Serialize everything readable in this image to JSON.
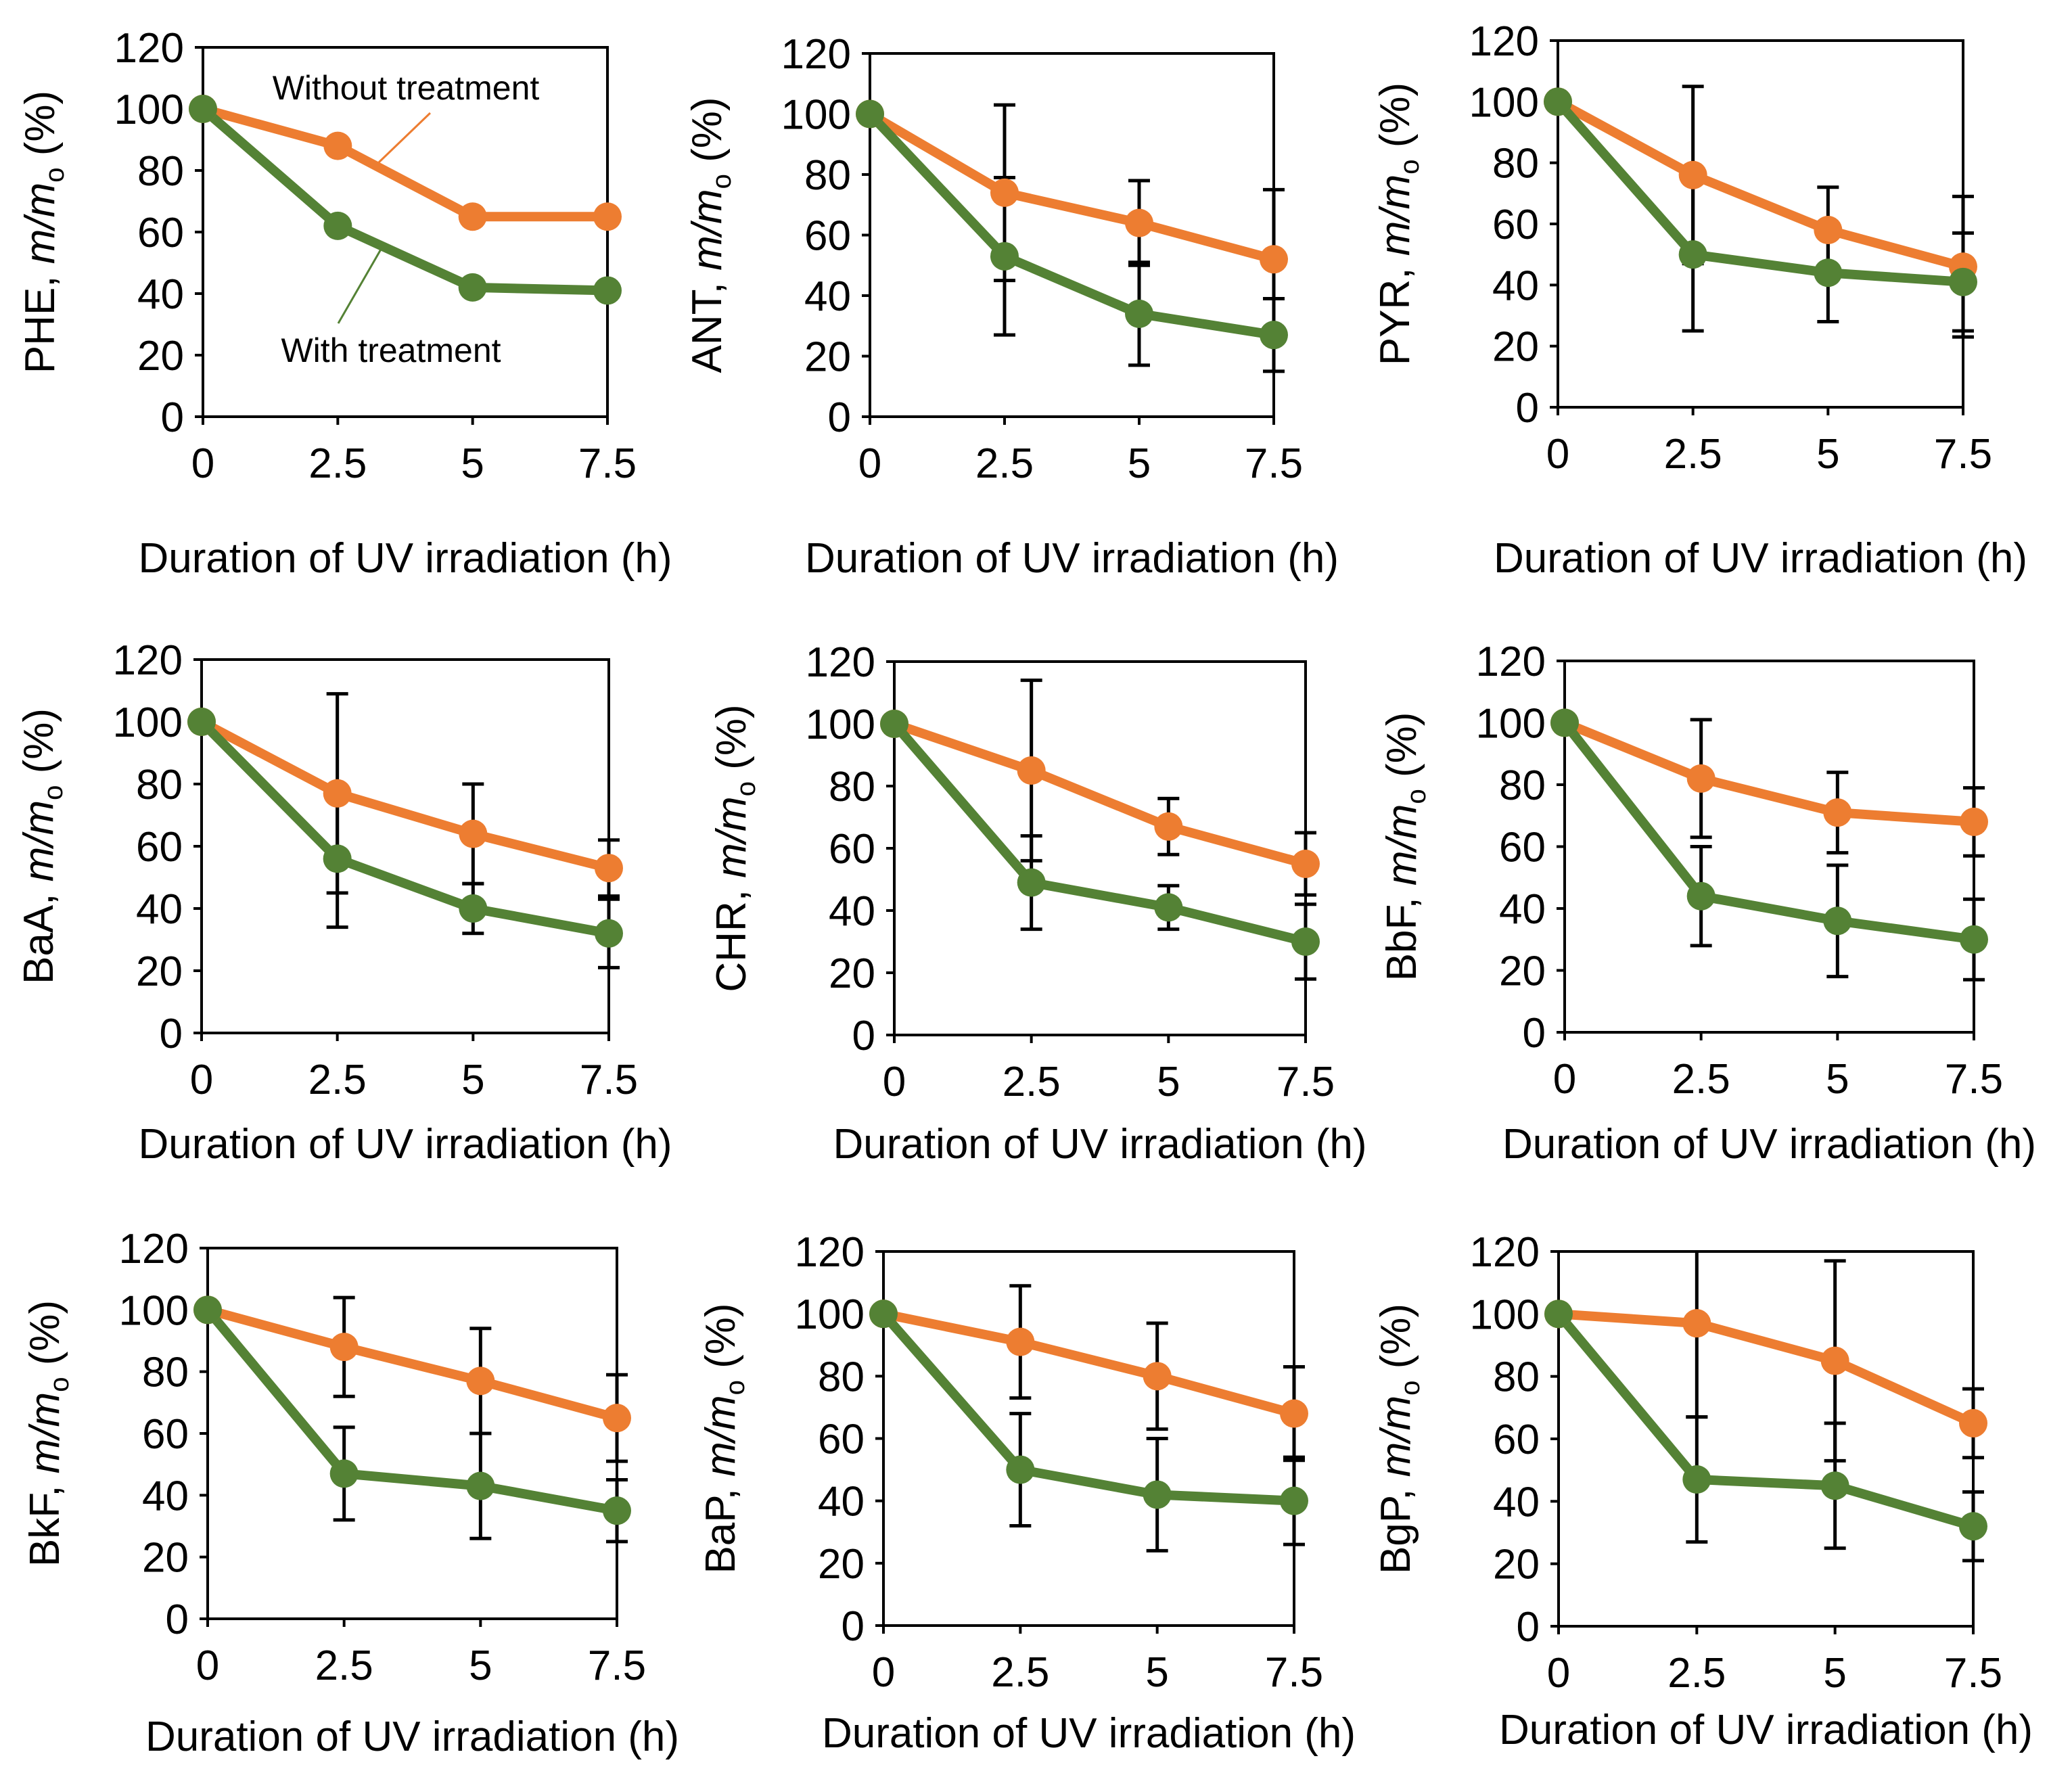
{
  "colors": {
    "without": "#ED7D31",
    "with": "#548235"
  },
  "chart_data": [
    {
      "type": "line",
      "panel": "PHE",
      "ylabel_prefix": "PHE, ",
      "ylabel_italic": "m/m",
      "ylabel_sub": "o",
      "ylabel_suffix": " (%)",
      "xlabel": "Duration of UV irradiation (h)",
      "x": [
        0,
        2.5,
        5,
        7.5
      ],
      "x_ticks": [
        "0",
        "2.5",
        "5",
        "7.5"
      ],
      "xlim": [
        0,
        7.5
      ],
      "y_ticks": [
        "0",
        "20",
        "40",
        "60",
        "80",
        "100",
        "120"
      ],
      "ylim": [
        0,
        120
      ],
      "series": [
        {
          "name": "Without treatment",
          "values": [
            100,
            88,
            65,
            65
          ],
          "err": [
            0,
            0,
            0,
            0
          ]
        },
        {
          "name": "With treatment",
          "values": [
            100,
            62,
            42,
            41
          ],
          "err": [
            0,
            0,
            0,
            0
          ]
        }
      ],
      "annotations": [
        "Without treatment",
        "With treatment"
      ]
    },
    {
      "type": "line",
      "panel": "ANT",
      "ylabel_prefix": "ANT, ",
      "ylabel_italic": "m/m",
      "ylabel_sub": "o",
      "ylabel_suffix": " (%)",
      "xlabel": "Duration of UV irradiation (h)",
      "x": [
        0,
        2.5,
        5,
        7.5
      ],
      "x_ticks": [
        "0",
        "2.5",
        "5",
        "7.5"
      ],
      "xlim": [
        0,
        7.5
      ],
      "y_ticks": [
        "0",
        "20",
        "40",
        "60",
        "80",
        "100",
        "120"
      ],
      "ylim": [
        0,
        120
      ],
      "series": [
        {
          "name": "Without treatment",
          "values": [
            100,
            74,
            64,
            52
          ],
          "err": [
            0,
            29,
            14,
            23
          ]
        },
        {
          "name": "With treatment",
          "values": [
            100,
            53,
            34,
            27
          ],
          "err": [
            0,
            26,
            17,
            12
          ]
        }
      ]
    },
    {
      "type": "line",
      "panel": "PYR",
      "ylabel_prefix": "PYR, ",
      "ylabel_italic": "m/m",
      "ylabel_sub": "o",
      "ylabel_suffix": " (%)",
      "xlabel": "Duration of UV irradiation (h)",
      "x": [
        0,
        2.5,
        5,
        7.5
      ],
      "x_ticks": [
        "0",
        "2.5",
        "5",
        "7.5"
      ],
      "xlim": [
        0,
        7.5
      ],
      "y_ticks": [
        "0",
        "20",
        "40",
        "60",
        "80",
        "100",
        "120"
      ],
      "ylim": [
        0,
        120
      ],
      "series": [
        {
          "name": "Without treatment",
          "values": [
            100,
            76,
            58,
            46
          ],
          "err": [
            0,
            29,
            14,
            23
          ]
        },
        {
          "name": "With treatment",
          "values": [
            100,
            50,
            44,
            41
          ],
          "err": [
            0,
            25,
            16,
            16
          ]
        }
      ]
    },
    {
      "type": "line",
      "panel": "BaA",
      "ylabel_prefix": "BaA, ",
      "ylabel_italic": "m/m",
      "ylabel_sub": "o",
      "ylabel_suffix": " (%)",
      "xlabel": "Duration of UV irradiation (h)",
      "x": [
        0,
        2.5,
        5,
        7.5
      ],
      "x_ticks": [
        "0",
        "2.5",
        "5",
        "7.5"
      ],
      "xlim": [
        0,
        7.5
      ],
      "y_ticks": [
        "0",
        "20",
        "40",
        "60",
        "80",
        "100",
        "120"
      ],
      "ylim": [
        0,
        120
      ],
      "series": [
        {
          "name": "Without treatment",
          "values": [
            100,
            77,
            64,
            53
          ],
          "err": [
            0,
            32,
            16,
            9
          ]
        },
        {
          "name": "With treatment",
          "values": [
            100,
            56,
            40,
            32
          ],
          "err": [
            0,
            22,
            8,
            11
          ]
        }
      ]
    },
    {
      "type": "line",
      "panel": "CHR",
      "ylabel_prefix": "CHR, ",
      "ylabel_italic": "m/m",
      "ylabel_sub": "o",
      "ylabel_suffix": " (%)",
      "xlabel": "Duration of UV irradiation (h)",
      "x": [
        0,
        2.5,
        5,
        7.5
      ],
      "x_ticks": [
        "0",
        "2.5",
        "5",
        "7.5"
      ],
      "xlim": [
        0,
        7.5
      ],
      "y_ticks": [
        "0",
        "20",
        "40",
        "60",
        "80",
        "100",
        "120"
      ],
      "ylim": [
        0,
        120
      ],
      "series": [
        {
          "name": "Without treatment",
          "values": [
            100,
            85,
            67,
            55
          ],
          "err": [
            0,
            29,
            9,
            10
          ]
        },
        {
          "name": "With treatment",
          "values": [
            100,
            49,
            41,
            30
          ],
          "err": [
            0,
            15,
            7,
            12
          ]
        }
      ]
    },
    {
      "type": "line",
      "panel": "BbF",
      "ylabel_prefix": "BbF, ",
      "ylabel_italic": "m/m",
      "ylabel_sub": "o",
      "ylabel_suffix": " (%)",
      "xlabel": "Duration of UV irradiation (h)",
      "x": [
        0,
        2.5,
        5,
        7.5
      ],
      "x_ticks": [
        "0",
        "2.5",
        "5",
        "7.5"
      ],
      "xlim": [
        0,
        7.5
      ],
      "y_ticks": [
        "0",
        "20",
        "40",
        "60",
        "80",
        "100",
        "120"
      ],
      "ylim": [
        0,
        120
      ],
      "series": [
        {
          "name": "Without treatment",
          "values": [
            100,
            82,
            71,
            68
          ],
          "err": [
            0,
            19,
            13,
            11
          ]
        },
        {
          "name": "With treatment",
          "values": [
            100,
            44,
            36,
            30
          ],
          "err": [
            0,
            16,
            18,
            13
          ]
        }
      ]
    },
    {
      "type": "line",
      "panel": "BkF",
      "ylabel_prefix": "BkF, ",
      "ylabel_italic": "m/m",
      "ylabel_sub": "o",
      "ylabel_suffix": " (%)",
      "xlabel": "Duration of UV irradiation (h)",
      "x": [
        0,
        2.5,
        5,
        7.5
      ],
      "x_ticks": [
        "0",
        "2.5",
        "5",
        "7.5"
      ],
      "xlim": [
        0,
        7.5
      ],
      "y_ticks": [
        "0",
        "20",
        "40",
        "60",
        "80",
        "100",
        "120"
      ],
      "ylim": [
        0,
        120
      ],
      "series": [
        {
          "name": "Without treatment",
          "values": [
            100,
            88,
            77,
            65
          ],
          "err": [
            0,
            16,
            17,
            14
          ]
        },
        {
          "name": "With treatment",
          "values": [
            100,
            47,
            43,
            35
          ],
          "err": [
            0,
            15,
            17,
            10
          ]
        }
      ]
    },
    {
      "type": "line",
      "panel": "BaP",
      "ylabel_prefix": "BaP, ",
      "ylabel_italic": "m/m",
      "ylabel_sub": "o",
      "ylabel_suffix": " (%)",
      "xlabel": "Duration of UV irradiation (h)",
      "x": [
        0,
        2.5,
        5,
        7.5
      ],
      "x_ticks": [
        "0",
        "2.5",
        "5",
        "7.5"
      ],
      "xlim": [
        0,
        7.5
      ],
      "y_ticks": [
        "0",
        "20",
        "40",
        "60",
        "80",
        "100",
        "120"
      ],
      "ylim": [
        0,
        120
      ],
      "series": [
        {
          "name": "Without treatment",
          "values": [
            100,
            91,
            80,
            68
          ],
          "err": [
            0,
            18,
            17,
            15
          ]
        },
        {
          "name": "With treatment",
          "values": [
            100,
            50,
            42,
            40
          ],
          "err": [
            0,
            18,
            18,
            14
          ]
        }
      ]
    },
    {
      "type": "line",
      "panel": "BgP",
      "ylabel_prefix": "BgP, ",
      "ylabel_italic": "m/m",
      "ylabel_sub": "o",
      "ylabel_suffix": " (%)",
      "xlabel": "Duration of UV irradiation (h)",
      "x": [
        0,
        2.5,
        5,
        7.5
      ],
      "x_ticks": [
        "0",
        "2.5",
        "5",
        "7.5"
      ],
      "xlim": [
        0,
        7.5
      ],
      "y_ticks": [
        "0",
        "20",
        "40",
        "60",
        "80",
        "100",
        "120"
      ],
      "ylim": [
        0,
        120
      ],
      "series": [
        {
          "name": "Without treatment",
          "values": [
            100,
            97,
            85,
            65
          ],
          "err": [
            0,
            30,
            32,
            11
          ]
        },
        {
          "name": "With treatment",
          "values": [
            100,
            47,
            45,
            32
          ],
          "err": [
            0,
            20,
            20,
            11
          ]
        }
      ]
    }
  ]
}
